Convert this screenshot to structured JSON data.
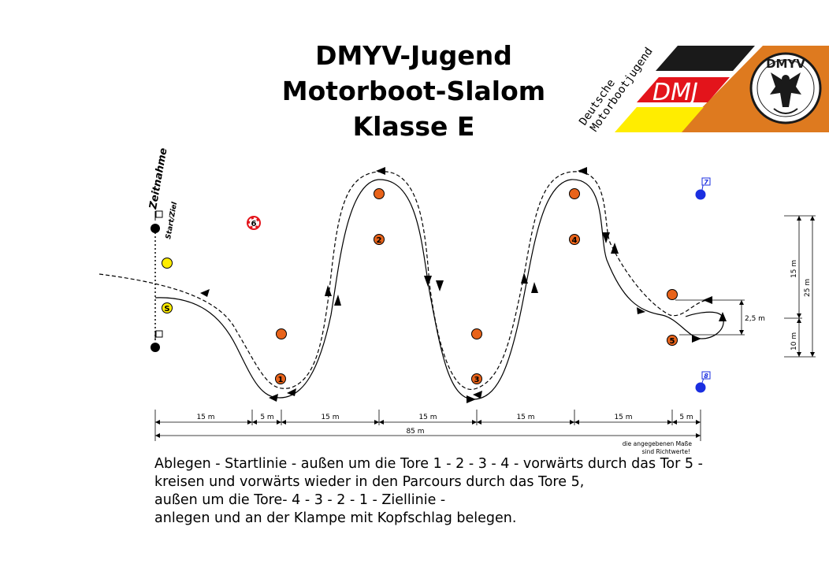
{
  "header": {
    "title_lines": [
      "DMYV-Jugend",
      "Motorboot-Slalom",
      "Klasse E"
    ]
  },
  "logo": {
    "text_main": "DMJ",
    "text_arc_1": "Deutsche",
    "text_arc_2": "Motorbootjugend",
    "badge_text": "DMYV",
    "colors": {
      "black": "#1a1a1a",
      "red": "#e3141b",
      "yellow": "#ffed00",
      "orange": "#de7a1f"
    }
  },
  "course": {
    "labels": {
      "zeitnahme": "Zeitnahme",
      "start_ziel": "Start/Ziel",
      "start_buoy": "S"
    },
    "buoys": [
      {
        "id": "1",
        "label": "1",
        "color": "#e8631a"
      },
      {
        "id": "2",
        "label": "2",
        "color": "#e8631a"
      },
      {
        "id": "3",
        "label": "3",
        "color": "#e8631a"
      },
      {
        "id": "4",
        "label": "4",
        "color": "#e8631a"
      },
      {
        "id": "5",
        "label": "5",
        "color": "#e8631a"
      },
      {
        "id": "6",
        "label": "6",
        "color": "#e3141b"
      },
      {
        "id": "7",
        "label": "7",
        "color": "#1a2ee0"
      },
      {
        "id": "8",
        "label": "8",
        "color": "#1a2ee0"
      }
    ],
    "dimensions": {
      "segments": [
        "15 m",
        "5 m",
        "15 m",
        "15 m",
        "15 m",
        "15 m",
        "5 m"
      ],
      "total": "85 m",
      "vertical_15": "15 m",
      "vertical_25": "25 m",
      "vertical_10": "10 m",
      "loop_gap": "2,5 m",
      "note_line_1": "die angegebenen Maße",
      "note_line_2": "sind Richtwerte!"
    }
  },
  "description": {
    "lines": [
      "Ablegen - Startlinie - außen um die Tore 1 - 2 - 3 - 4 - vorwärts durch das Tor 5 -",
      "kreisen und vorwärts wieder in den Parcours durch das Tore 5,",
      "außen um die Tore- 4 - 3 - 2 - 1 - Ziellinie -",
      "anlegen und an der Klampe mit Kopfschlag belegen."
    ]
  }
}
